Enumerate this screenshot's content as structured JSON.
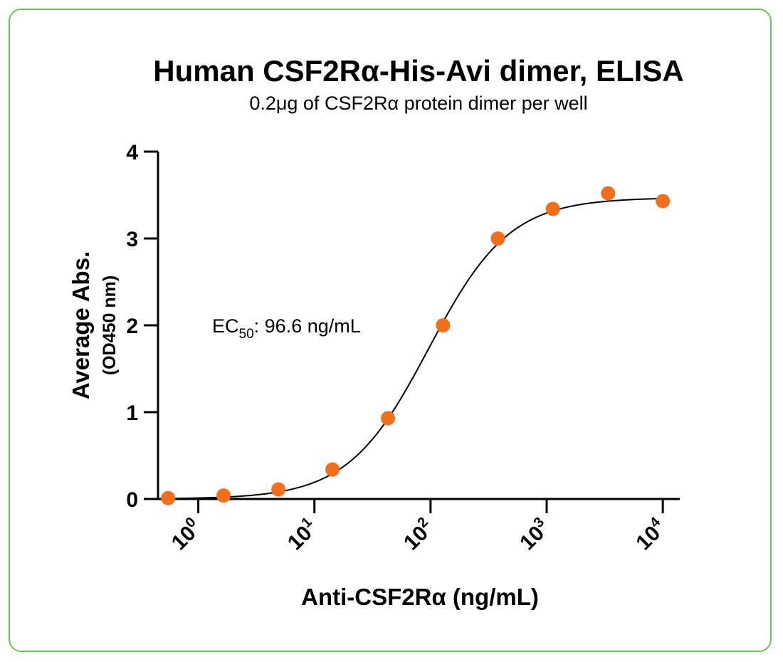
{
  "chart_data": {
    "type": "scatter",
    "title": "Human CSF2Rα-His-Avi dimer, ELISA",
    "subtitle": "0.2μg of CSF2Rα protein dimer per well",
    "xlabel": "Anti-CSF2Rα (ng/mL)",
    "ylabel": "Average Abs.",
    "ylabel_sub": "(OD450 nm)",
    "x_scale": "log10",
    "xlim": [
      0.45,
      14000
    ],
    "ylim": [
      0,
      4
    ],
    "x_ticks": [
      {
        "base": "10",
        "exp": "0",
        "value": 1
      },
      {
        "base": "10",
        "exp": "1",
        "value": 10
      },
      {
        "base": "10",
        "exp": "2",
        "value": 100
      },
      {
        "base": "10",
        "exp": "3",
        "value": 1000
      },
      {
        "base": "10",
        "exp": "4",
        "value": 10000
      }
    ],
    "y_ticks": [
      "0",
      "1",
      "2",
      "3",
      "4"
    ],
    "points": [
      {
        "x": 0.55,
        "y": 0.01
      },
      {
        "x": 1.65,
        "y": 0.04
      },
      {
        "x": 4.9,
        "y": 0.11
      },
      {
        "x": 14.3,
        "y": 0.34
      },
      {
        "x": 43,
        "y": 0.93
      },
      {
        "x": 128,
        "y": 2.0
      },
      {
        "x": 380,
        "y": 3.0
      },
      {
        "x": 1130,
        "y": 3.34
      },
      {
        "x": 3380,
        "y": 3.52
      },
      {
        "x": 10000,
        "y": 3.43
      }
    ],
    "fit": {
      "bottom": 0.0,
      "top": 3.47,
      "ec50": 96.6,
      "hill": 1.25
    },
    "annotation": {
      "prefix": "EC",
      "subscript": "50",
      "suffix": ": 96.6 ng/mL"
    },
    "point_color": "#f26f1c",
    "curve_color": "#000000",
    "grid": false,
    "legend": "none"
  }
}
